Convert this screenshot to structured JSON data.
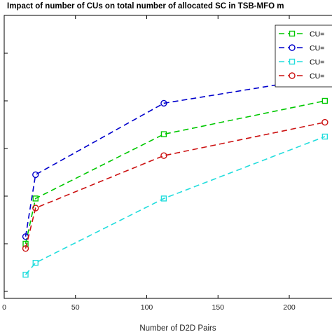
{
  "chart_data": {
    "type": "line",
    "title": "Impact of number of CUs on total number of allocated SC in TSB-MFO m",
    "xlabel": "Number of D2D Pairs",
    "ylabel": "",
    "xlim": [
      0,
      230
    ],
    "xticks": [
      0,
      50,
      100,
      150,
      200
    ],
    "legend_position": "top-right",
    "grid": false,
    "series": [
      {
        "name": "CU=",
        "color": "#00c800",
        "marker": "square",
        "x": [
          15,
          22,
          112,
          225
        ],
        "y": [
          20,
          39,
          66,
          80
        ]
      },
      {
        "name": "CU=",
        "color": "#0000cc",
        "marker": "circle",
        "x": [
          15,
          22,
          112,
          225
        ],
        "y": [
          23,
          49,
          79,
          90
        ]
      },
      {
        "name": "CU=",
        "color": "#22dddd",
        "marker": "square",
        "x": [
          15,
          22,
          112,
          225
        ],
        "y": [
          7,
          12,
          39,
          65
        ]
      },
      {
        "name": "CU=",
        "color": "#cc1111",
        "marker": "circle",
        "x": [
          15,
          22,
          112,
          225
        ],
        "y": [
          18,
          35,
          57,
          71
        ]
      }
    ]
  }
}
